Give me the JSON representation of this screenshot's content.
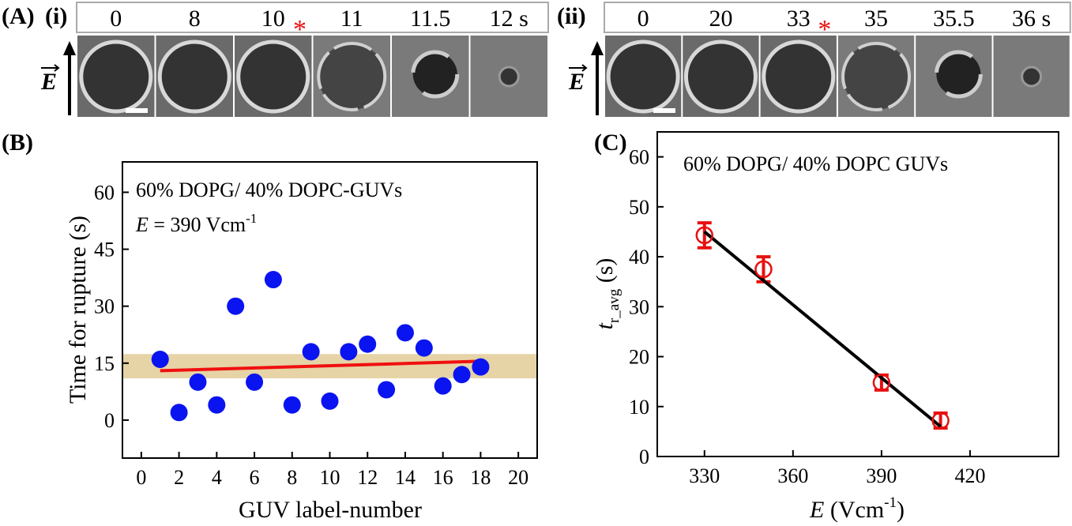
{
  "panel_labels": [
    "(A)",
    "(B)",
    "(C)"
  ],
  "panel_a": {
    "sets": [
      {
        "label": "(i)",
        "times": [
          "0",
          "8",
          "10",
          "11",
          "11.5",
          "12 s"
        ]
      },
      {
        "label": "(ii)",
        "times": [
          "0",
          "20",
          "33",
          "35",
          "35.5",
          "36 s"
        ]
      }
    ],
    "asterisk": "*",
    "field_label": "E"
  },
  "chart_data": [
    {
      "type": "scatter",
      "x": [
        1,
        2,
        3,
        4,
        5,
        6,
        7,
        8,
        9,
        10,
        11,
        12,
        13,
        14,
        15,
        16,
        17,
        18
      ],
      "values": [
        16,
        2,
        10,
        4,
        30,
        10,
        37,
        4,
        18,
        5,
        18,
        20,
        8,
        23,
        19,
        9,
        12,
        14
      ],
      "color": "#0a14f0",
      "marker": "filled",
      "fit": {
        "x": [
          1,
          18
        ],
        "y": [
          13,
          15.5
        ],
        "color": "#f01010"
      },
      "band": {
        "y": [
          11,
          17.4
        ],
        "color": "#e6d3a6"
      },
      "xlim": [
        -1,
        21
      ],
      "ylim": [
        -10,
        68
      ],
      "xticks": [
        0,
        2,
        4,
        6,
        8,
        10,
        12,
        14,
        16,
        18,
        20
      ],
      "yticks": [
        0,
        15,
        30,
        45,
        60
      ],
      "x_label": "GUV label-number",
      "y_label": "Time for rupture (s)",
      "annotation": "60% DOPG/ 40% DOPC-GUVs",
      "annotation2": {
        "symbol": "E",
        "text": " = 390 Vcm",
        "superscript": "-1"
      }
    },
    {
      "type": "scatter",
      "x": [
        330,
        350,
        390,
        410
      ],
      "values": [
        44.3,
        37.5,
        14.8,
        7.2
      ],
      "errors": [
        2.5,
        2.5,
        1.5,
        1.5
      ],
      "color": "#e81010",
      "marker": "open",
      "fit": {
        "x": [
          330,
          410
        ],
        "y": [
          45,
          6
        ],
        "color": "#000000"
      },
      "xlim": [
        314,
        450
      ],
      "ylim": [
        0,
        65
      ],
      "xticks": [
        330,
        360,
        390,
        420
      ],
      "yticks": [
        0,
        10,
        20,
        30,
        40,
        50,
        60
      ],
      "x_label": {
        "symbol": "E",
        "text": " (Vcm",
        "superscript": "-1",
        "end": ")"
      },
      "y_label": {
        "symbol": "t",
        "subscript": "r_avg",
        "text": " (s)"
      },
      "annotation": "60% DOPG/ 40% DOPC GUVs"
    }
  ]
}
